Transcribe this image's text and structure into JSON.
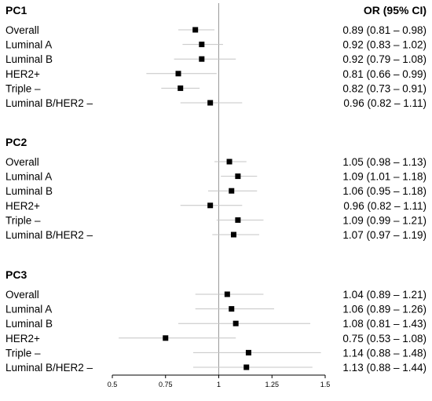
{
  "chart_data": {
    "type": "forest",
    "column_header": "OR (95% CI)",
    "xlim": [
      0.5,
      1.5
    ],
    "reference_line": 1,
    "x_ticks": [
      "0.5",
      "0.75",
      "1",
      "1.25",
      "1.5"
    ],
    "x_tick_values": [
      0.5,
      0.75,
      1,
      1.25,
      1.5
    ],
    "groups": [
      {
        "name": "PC1",
        "rows": [
          {
            "label": "Overall",
            "or": 0.89,
            "lo": 0.81,
            "hi": 0.98,
            "text": "0.89 (0.81 – 0.98)"
          },
          {
            "label": "Luminal A",
            "or": 0.92,
            "lo": 0.83,
            "hi": 1.02,
            "text": "0.92 (0.83 – 1.02)"
          },
          {
            "label": "Luminal B",
            "or": 0.92,
            "lo": 0.79,
            "hi": 1.08,
            "text": "0.92 (0.79 – 1.08)"
          },
          {
            "label": "HER2+",
            "or": 0.81,
            "lo": 0.66,
            "hi": 0.99,
            "text": "0.81 (0.66 – 0.99)"
          },
          {
            "label": "Triple –",
            "or": 0.82,
            "lo": 0.73,
            "hi": 0.91,
            "text": "0.82 (0.73 – 0.91)"
          },
          {
            "label": "Luminal B/HER2 –",
            "or": 0.96,
            "lo": 0.82,
            "hi": 1.11,
            "text": "0.96 (0.82 – 1.11)"
          }
        ]
      },
      {
        "name": "PC2",
        "rows": [
          {
            "label": "Overall",
            "or": 1.05,
            "lo": 0.98,
            "hi": 1.13,
            "text": "1.05 (0.98 – 1.13)"
          },
          {
            "label": "Luminal A",
            "or": 1.09,
            "lo": 1.01,
            "hi": 1.18,
            "text": "1.09 (1.01 – 1.18)"
          },
          {
            "label": "Luminal B",
            "or": 1.06,
            "lo": 0.95,
            "hi": 1.18,
            "text": "1.06 (0.95 – 1.18)"
          },
          {
            "label": "HER2+",
            "or": 0.96,
            "lo": 0.82,
            "hi": 1.11,
            "text": "0.96 (0.82 – 1.11)"
          },
          {
            "label": "Triple –",
            "or": 1.09,
            "lo": 0.99,
            "hi": 1.21,
            "text": "1.09 (0.99 – 1.21)"
          },
          {
            "label": "Luminal B/HER2 –",
            "or": 1.07,
            "lo": 0.97,
            "hi": 1.19,
            "text": "1.07 (0.97 – 1.19)"
          }
        ]
      },
      {
        "name": "PC3",
        "rows": [
          {
            "label": "Overall",
            "or": 1.04,
            "lo": 0.89,
            "hi": 1.21,
            "text": "1.04 (0.89 – 1.21)"
          },
          {
            "label": "Luminal A",
            "or": 1.06,
            "lo": 0.89,
            "hi": 1.26,
            "text": "1.06 (0.89 – 1.26)"
          },
          {
            "label": "Luminal B",
            "or": 1.08,
            "lo": 0.81,
            "hi": 1.43,
            "text": "1.08 (0.81 – 1.43)"
          },
          {
            "label": "HER2+",
            "or": 0.75,
            "lo": 0.53,
            "hi": 1.08,
            "text": "0.75 (0.53 – 1.08)"
          },
          {
            "label": "Triple –",
            "or": 1.14,
            "lo": 0.88,
            "hi": 1.48,
            "text": "1.14 (0.88 – 1.48)"
          },
          {
            "label": "Luminal B/HER2 –",
            "or": 1.13,
            "lo": 0.88,
            "hi": 1.44,
            "text": "1.13 (0.88 – 1.44)"
          }
        ]
      }
    ]
  }
}
